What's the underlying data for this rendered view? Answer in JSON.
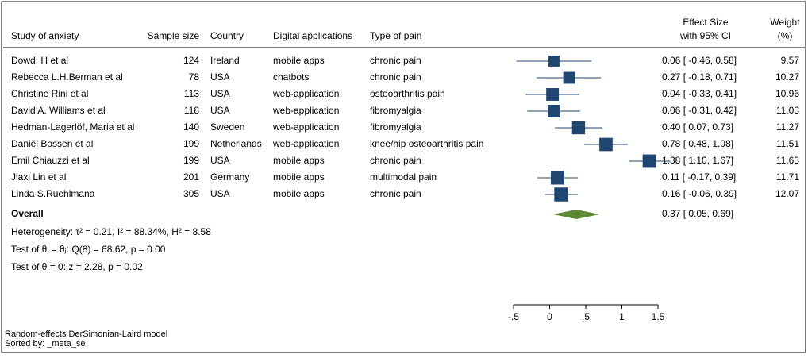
{
  "chart_data": {
    "type": "forest",
    "columns": {
      "study": "Study of anxiety",
      "sample": "Sample size",
      "country": "Country",
      "app": "Digital applications",
      "pain": "Type of pain",
      "effect": [
        "Effect Size",
        "with 95% CI"
      ],
      "weight": [
        "Weight",
        "(%)"
      ]
    },
    "studies": [
      "Dowd, H et al",
      "Rebecca L.H.Berman et al",
      "Christine Rini et al",
      "David A. Williams et al",
      "Hedman-Lagerlöf, Maria et al",
      "Daniël Bossen et al",
      "Emil Chiauzzi et al",
      "Jiaxi Lin et al",
      "Linda S.Ruehlmana"
    ],
    "sample_size": [
      124,
      78,
      113,
      118,
      140,
      199,
      199,
      201,
      305
    ],
    "country": [
      "Ireland",
      "USA",
      "USA",
      "USA",
      "Sweden",
      "Netherlands",
      "USA",
      "Germany",
      "USA"
    ],
    "app": [
      "mobile apps",
      "chatbots",
      "web-application",
      "web-application",
      "web-application",
      "web-application",
      "mobile apps",
      "mobile apps",
      "mobile apps"
    ],
    "pain": [
      "chronic pain",
      "chronic pain",
      "osteoarthritis pain",
      "fibromyalgia",
      "fibromyalgia",
      "knee/hip osteoarthritis pain",
      "chronic pain",
      "multimodal pain",
      "chronic pain"
    ],
    "values": [
      0.06,
      0.27,
      0.04,
      0.06,
      0.4,
      0.78,
      1.38,
      0.11,
      0.16
    ],
    "lower": [
      -0.46,
      -0.18,
      -0.33,
      -0.31,
      0.07,
      0.48,
      1.1,
      -0.17,
      -0.06
    ],
    "upper": [
      0.58,
      0.71,
      0.41,
      0.42,
      0.73,
      1.08,
      1.67,
      0.39,
      0.39
    ],
    "value_labels": [
      "0.06 [ -0.46, 0.58]",
      "0.27 [ -0.18, 0.71]",
      "0.04 [ -0.33, 0.41]",
      "0.06 [ -0.31, 0.42]",
      "0.40 [ 0.07, 0.73]",
      "0.78 [ 0.48, 1.08]",
      "1.38 [ 1.10, 1.67]",
      "0.11 [ -0.17, 0.39]",
      "0.16 [ -0.06, 0.39]"
    ],
    "weights": [
      9.57,
      10.27,
      10.96,
      11.03,
      11.27,
      11.51,
      11.63,
      11.71,
      12.07
    ],
    "color": "#1f4571",
    "overall": {
      "label": "Overall",
      "value": 0.37,
      "lower": 0.05,
      "upper": 0.69,
      "value_label": "0.37 [ 0.05, 0.69]",
      "color": "#5b8a32"
    },
    "notes": [
      "Heterogeneity: τ² = 0.21, I² = 88.34%, H² = 8.58",
      "Test of θᵢ = θⱼ: Q(8) = 68.62, p = 0.00",
      "Test of θ = 0: z = 2.28, p = 0.02"
    ],
    "footnotes": [
      "Random-effects DerSimonian-Laird model",
      "Sorted by: _meta_se"
    ],
    "xlim": [
      -0.5,
      1.5
    ],
    "xticks": [
      {
        "value": -0.5,
        "label": "-.5"
      },
      0,
      {
        "value": 0.5,
        "label": ".5"
      },
      1,
      1.5
    ]
  }
}
